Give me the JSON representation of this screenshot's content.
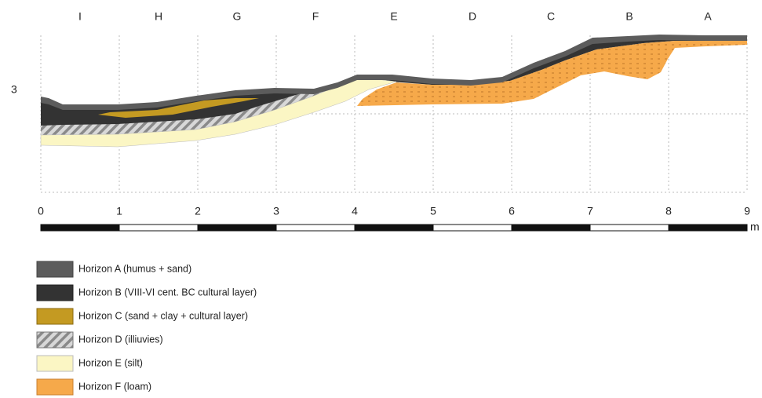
{
  "columns": [
    "I",
    "H",
    "G",
    "F",
    "E",
    "D",
    "C",
    "B",
    "A"
  ],
  "row_label": "3",
  "scale": {
    "ticks": [
      0,
      1,
      2,
      3,
      4,
      5,
      6,
      7,
      8,
      9
    ],
    "unit": "m"
  },
  "legend": [
    "Horizon A (humus + sand)",
    "Horizon B (VIII-VI cent. BC cultural layer)",
    "Horizon C (sand + clay + cultural layer)",
    "Horizon D (illiuvies)",
    "Horizon E (silt)",
    "Horizon F (loam)"
  ]
}
